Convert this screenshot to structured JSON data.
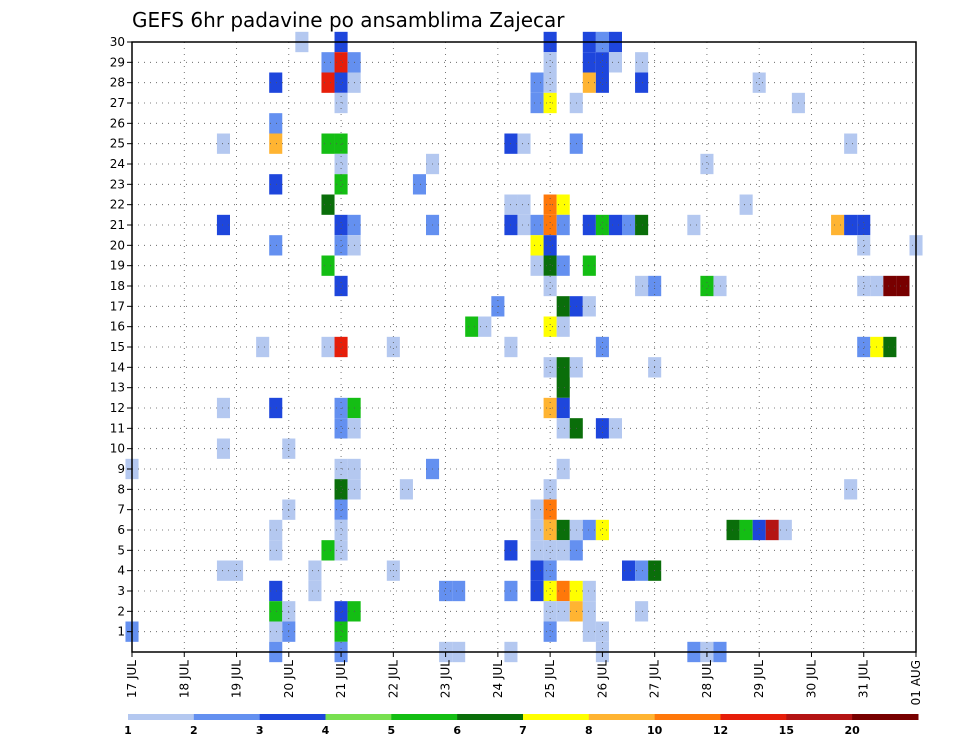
{
  "chart_data": {
    "type": "heatmap",
    "title": "GEFS 6hr padavine po ansamblima Zajecar",
    "xlabel": "",
    "ylabel": "",
    "x_tick_labels": [
      "17 JUL",
      "18 JUL",
      "19 JUL",
      "20 JUL",
      "21 JUL",
      "22 JUL",
      "23 JUL",
      "24 JUL",
      "25 JUL",
      "26 JUL",
      "27 JUL",
      "28 JUL",
      "29 JUL",
      "30 JUL",
      "31 JUL",
      "01 AUG"
    ],
    "y_tick_labels": [
      "1",
      "2",
      "3",
      "4",
      "5",
      "6",
      "7",
      "8",
      "9",
      "10",
      "11",
      "12",
      "13",
      "14",
      "15",
      "16",
      "17",
      "18",
      "19",
      "20",
      "21",
      "22",
      "23",
      "24",
      "25",
      "26",
      "27",
      "28",
      "29",
      "30"
    ],
    "x_range_days": [
      0,
      15
    ],
    "y_range_members": [
      0,
      30
    ],
    "grid": true,
    "legend_placement": "bottom",
    "legend": {
      "labels": [
        "1",
        "2",
        "3",
        "4",
        "5",
        "6",
        "7",
        "8",
        "10",
        "12",
        "15",
        "20"
      ],
      "colors": [
        "#b4c8f0",
        "#6490f0",
        "#1e46dc",
        "#78e050",
        "#14be14",
        "#0a6e0a",
        "#ffff00",
        "#ffb432",
        "#ff780a",
        "#e61e0a",
        "#b41414",
        "#780000"
      ]
    },
    "cells": [
      {
        "x": 3.25,
        "y": 30,
        "c": 0
      },
      {
        "x": 4.0,
        "y": 30,
        "c": 2
      },
      {
        "x": 8.0,
        "y": 30,
        "c": 2
      },
      {
        "x": 8.75,
        "y": 30,
        "c": 2
      },
      {
        "x": 9.0,
        "y": 30,
        "c": 1
      },
      {
        "x": 9.25,
        "y": 30,
        "c": 2
      },
      {
        "x": 3.75,
        "y": 29,
        "c": 1
      },
      {
        "x": 4.0,
        "y": 29,
        "c": 9
      },
      {
        "x": 4.25,
        "y": 29,
        "c": 1
      },
      {
        "x": 8.0,
        "y": 29,
        "c": 0
      },
      {
        "x": 8.75,
        "y": 29,
        "c": 2
      },
      {
        "x": 9.0,
        "y": 29,
        "c": 2
      },
      {
        "x": 9.25,
        "y": 29,
        "c": 0
      },
      {
        "x": 9.75,
        "y": 29,
        "c": 0
      },
      {
        "x": 2.75,
        "y": 28,
        "c": 2
      },
      {
        "x": 3.75,
        "y": 28,
        "c": 9
      },
      {
        "x": 4.0,
        "y": 28,
        "c": 2
      },
      {
        "x": 4.25,
        "y": 28,
        "c": 0
      },
      {
        "x": 7.75,
        "y": 28,
        "c": 1
      },
      {
        "x": 8.0,
        "y": 28,
        "c": 0
      },
      {
        "x": 8.75,
        "y": 28,
        "c": 7
      },
      {
        "x": 9.0,
        "y": 28,
        "c": 2
      },
      {
        "x": 9.75,
        "y": 28,
        "c": 2
      },
      {
        "x": 12.0,
        "y": 28,
        "c": 0
      },
      {
        "x": 4.0,
        "y": 27,
        "c": 0
      },
      {
        "x": 7.75,
        "y": 27,
        "c": 1
      },
      {
        "x": 8.0,
        "y": 27,
        "c": 6
      },
      {
        "x": 8.5,
        "y": 27,
        "c": 0
      },
      {
        "x": 12.75,
        "y": 27,
        "c": 0
      },
      {
        "x": 2.75,
        "y": 26,
        "c": 1
      },
      {
        "x": 1.75,
        "y": 25,
        "c": 0
      },
      {
        "x": 2.75,
        "y": 25,
        "c": 7
      },
      {
        "x": 3.75,
        "y": 25,
        "c": 4
      },
      {
        "x": 4.0,
        "y": 25,
        "c": 4
      },
      {
        "x": 7.25,
        "y": 25,
        "c": 2
      },
      {
        "x": 7.5,
        "y": 25,
        "c": 0
      },
      {
        "x": 8.5,
        "y": 25,
        "c": 1
      },
      {
        "x": 13.75,
        "y": 25,
        "c": 0
      },
      {
        "x": 4.0,
        "y": 24,
        "c": 0
      },
      {
        "x": 5.75,
        "y": 24,
        "c": 0
      },
      {
        "x": 11.0,
        "y": 24,
        "c": 0
      },
      {
        "x": 2.75,
        "y": 23,
        "c": 2
      },
      {
        "x": 4.0,
        "y": 23,
        "c": 4
      },
      {
        "x": 5.5,
        "y": 23,
        "c": 1
      },
      {
        "x": 3.75,
        "y": 22,
        "c": 5
      },
      {
        "x": 7.25,
        "y": 22,
        "c": 0
      },
      {
        "x": 7.5,
        "y": 22,
        "c": 0
      },
      {
        "x": 8.0,
        "y": 22,
        "c": 8
      },
      {
        "x": 8.25,
        "y": 22,
        "c": 6
      },
      {
        "x": 11.75,
        "y": 22,
        "c": 0
      },
      {
        "x": 1.75,
        "y": 21,
        "c": 2
      },
      {
        "x": 4.0,
        "y": 21,
        "c": 2
      },
      {
        "x": 4.25,
        "y": 21,
        "c": 1
      },
      {
        "x": 5.75,
        "y": 21,
        "c": 1
      },
      {
        "x": 7.25,
        "y": 21,
        "c": 2
      },
      {
        "x": 7.5,
        "y": 21,
        "c": 0
      },
      {
        "x": 7.75,
        "y": 21,
        "c": 1
      },
      {
        "x": 8.0,
        "y": 21,
        "c": 8
      },
      {
        "x": 8.25,
        "y": 21,
        "c": 1
      },
      {
        "x": 8.75,
        "y": 21,
        "c": 2
      },
      {
        "x": 9.0,
        "y": 21,
        "c": 4
      },
      {
        "x": 9.25,
        "y": 21,
        "c": 2
      },
      {
        "x": 9.5,
        "y": 21,
        "c": 1
      },
      {
        "x": 9.75,
        "y": 21,
        "c": 5
      },
      {
        "x": 10.75,
        "y": 21,
        "c": 0
      },
      {
        "x": 13.5,
        "y": 21,
        "c": 7
      },
      {
        "x": 13.75,
        "y": 21,
        "c": 2
      },
      {
        "x": 14.0,
        "y": 21,
        "c": 2
      },
      {
        "x": 2.75,
        "y": 20,
        "c": 1
      },
      {
        "x": 4.0,
        "y": 20,
        "c": 1
      },
      {
        "x": 4.25,
        "y": 20,
        "c": 0
      },
      {
        "x": 7.75,
        "y": 20,
        "c": 6
      },
      {
        "x": 8.0,
        "y": 20,
        "c": 2
      },
      {
        "x": 14.0,
        "y": 20,
        "c": 0
      },
      {
        "x": 15.0,
        "y": 20,
        "c": 0
      },
      {
        "x": 3.75,
        "y": 19,
        "c": 4
      },
      {
        "x": 7.75,
        "y": 19,
        "c": 0
      },
      {
        "x": 8.0,
        "y": 19,
        "c": 5
      },
      {
        "x": 8.25,
        "y": 19,
        "c": 1
      },
      {
        "x": 8.75,
        "y": 19,
        "c": 4
      },
      {
        "x": 4.0,
        "y": 18,
        "c": 2
      },
      {
        "x": 8.0,
        "y": 18,
        "c": 0
      },
      {
        "x": 9.75,
        "y": 18,
        "c": 0
      },
      {
        "x": 10.0,
        "y": 18,
        "c": 1
      },
      {
        "x": 11.0,
        "y": 18,
        "c": 4
      },
      {
        "x": 11.25,
        "y": 18,
        "c": 0
      },
      {
        "x": 14.0,
        "y": 18,
        "c": 0
      },
      {
        "x": 14.25,
        "y": 18,
        "c": 0
      },
      {
        "x": 14.5,
        "y": 18,
        "c": 11
      },
      {
        "x": 14.75,
        "y": 18,
        "c": 11
      },
      {
        "x": 7.0,
        "y": 17,
        "c": 1
      },
      {
        "x": 8.25,
        "y": 17,
        "c": 5
      },
      {
        "x": 8.5,
        "y": 17,
        "c": 2
      },
      {
        "x": 8.75,
        "y": 17,
        "c": 0
      },
      {
        "x": 6.5,
        "y": 16,
        "c": 4
      },
      {
        "x": 6.75,
        "y": 16,
        "c": 0
      },
      {
        "x": 8.0,
        "y": 16,
        "c": 6
      },
      {
        "x": 8.25,
        "y": 16,
        "c": 0
      },
      {
        "x": 2.5,
        "y": 15,
        "c": 0
      },
      {
        "x": 3.75,
        "y": 15,
        "c": 0
      },
      {
        "x": 4.0,
        "y": 15,
        "c": 9
      },
      {
        "x": 5.0,
        "y": 15,
        "c": 0
      },
      {
        "x": 7.25,
        "y": 15,
        "c": 0
      },
      {
        "x": 9.0,
        "y": 15,
        "c": 1
      },
      {
        "x": 14.0,
        "y": 15,
        "c": 1
      },
      {
        "x": 14.25,
        "y": 15,
        "c": 6
      },
      {
        "x": 14.5,
        "y": 15,
        "c": 5
      },
      {
        "x": 8.0,
        "y": 14,
        "c": 0
      },
      {
        "x": 8.25,
        "y": 14,
        "c": 5
      },
      {
        "x": 8.5,
        "y": 14,
        "c": 0
      },
      {
        "x": 10.0,
        "y": 14,
        "c": 0
      },
      {
        "x": 8.25,
        "y": 13,
        "c": 5
      },
      {
        "x": 1.75,
        "y": 12,
        "c": 0
      },
      {
        "x": 2.75,
        "y": 12,
        "c": 2
      },
      {
        "x": 4.0,
        "y": 12,
        "c": 1
      },
      {
        "x": 4.25,
        "y": 12,
        "c": 4
      },
      {
        "x": 8.0,
        "y": 12,
        "c": 7
      },
      {
        "x": 8.25,
        "y": 12,
        "c": 2
      },
      {
        "x": 4.0,
        "y": 11,
        "c": 1
      },
      {
        "x": 4.25,
        "y": 11,
        "c": 0
      },
      {
        "x": 8.25,
        "y": 11,
        "c": 0
      },
      {
        "x": 8.5,
        "y": 11,
        "c": 5
      },
      {
        "x": 9.0,
        "y": 11,
        "c": 2
      },
      {
        "x": 9.25,
        "y": 11,
        "c": 0
      },
      {
        "x": 1.75,
        "y": 10,
        "c": 0
      },
      {
        "x": 3.0,
        "y": 10,
        "c": 0
      },
      {
        "x": 0.0,
        "y": 9,
        "c": 0
      },
      {
        "x": 4.0,
        "y": 9,
        "c": 0
      },
      {
        "x": 4.25,
        "y": 9,
        "c": 0
      },
      {
        "x": 5.75,
        "y": 9,
        "c": 1
      },
      {
        "x": 8.25,
        "y": 9,
        "c": 0
      },
      {
        "x": 4.0,
        "y": 8,
        "c": 5
      },
      {
        "x": 4.25,
        "y": 8,
        "c": 0
      },
      {
        "x": 5.25,
        "y": 8,
        "c": 0
      },
      {
        "x": 8.0,
        "y": 8,
        "c": 0
      },
      {
        "x": 13.75,
        "y": 8,
        "c": 0
      },
      {
        "x": 3.0,
        "y": 7,
        "c": 0
      },
      {
        "x": 4.0,
        "y": 7,
        "c": 1
      },
      {
        "x": 7.75,
        "y": 7,
        "c": 0
      },
      {
        "x": 8.0,
        "y": 7,
        "c": 8
      },
      {
        "x": 2.75,
        "y": 6,
        "c": 0
      },
      {
        "x": 4.0,
        "y": 6,
        "c": 0
      },
      {
        "x": 7.75,
        "y": 6,
        "c": 0
      },
      {
        "x": 8.0,
        "y": 6,
        "c": 7
      },
      {
        "x": 8.25,
        "y": 6,
        "c": 5
      },
      {
        "x": 8.5,
        "y": 6,
        "c": 0
      },
      {
        "x": 8.75,
        "y": 6,
        "c": 1
      },
      {
        "x": 9.0,
        "y": 6,
        "c": 6
      },
      {
        "x": 11.5,
        "y": 6,
        "c": 5
      },
      {
        "x": 11.75,
        "y": 6,
        "c": 4
      },
      {
        "x": 12.0,
        "y": 6,
        "c": 2
      },
      {
        "x": 12.25,
        "y": 6,
        "c": 10
      },
      {
        "x": 12.5,
        "y": 6,
        "c": 0
      },
      {
        "x": 2.75,
        "y": 5,
        "c": 0
      },
      {
        "x": 3.75,
        "y": 5,
        "c": 4
      },
      {
        "x": 4.0,
        "y": 5,
        "c": 0
      },
      {
        "x": 7.25,
        "y": 5,
        "c": 2
      },
      {
        "x": 7.75,
        "y": 5,
        "c": 0
      },
      {
        "x": 8.0,
        "y": 5,
        "c": 0
      },
      {
        "x": 8.25,
        "y": 5,
        "c": 0
      },
      {
        "x": 8.5,
        "y": 5,
        "c": 1
      },
      {
        "x": 1.75,
        "y": 4,
        "c": 0
      },
      {
        "x": 2.0,
        "y": 4,
        "c": 0
      },
      {
        "x": 3.5,
        "y": 4,
        "c": 0
      },
      {
        "x": 5.0,
        "y": 4,
        "c": 0
      },
      {
        "x": 7.75,
        "y": 4,
        "c": 2
      },
      {
        "x": 8.0,
        "y": 4,
        "c": 1
      },
      {
        "x": 9.5,
        "y": 4,
        "c": 2
      },
      {
        "x": 9.75,
        "y": 4,
        "c": 1
      },
      {
        "x": 10.0,
        "y": 4,
        "c": 5
      },
      {
        "x": 2.75,
        "y": 3,
        "c": 2
      },
      {
        "x": 3.5,
        "y": 3,
        "c": 0
      },
      {
        "x": 6.0,
        "y": 3,
        "c": 1
      },
      {
        "x": 6.25,
        "y": 3,
        "c": 1
      },
      {
        "x": 7.25,
        "y": 3,
        "c": 1
      },
      {
        "x": 7.75,
        "y": 3,
        "c": 2
      },
      {
        "x": 8.0,
        "y": 3,
        "c": 6
      },
      {
        "x": 8.25,
        "y": 3,
        "c": 8
      },
      {
        "x": 8.5,
        "y": 3,
        "c": 6
      },
      {
        "x": 8.75,
        "y": 3,
        "c": 0
      },
      {
        "x": 2.75,
        "y": 2,
        "c": 4
      },
      {
        "x": 3.0,
        "y": 2,
        "c": 0
      },
      {
        "x": 4.0,
        "y": 2,
        "c": 2
      },
      {
        "x": 4.25,
        "y": 2,
        "c": 4
      },
      {
        "x": 8.0,
        "y": 2,
        "c": 0
      },
      {
        "x": 8.25,
        "y": 2,
        "c": 0
      },
      {
        "x": 8.5,
        "y": 2,
        "c": 7
      },
      {
        "x": 8.75,
        "y": 2,
        "c": 0
      },
      {
        "x": 9.75,
        "y": 2,
        "c": 0
      },
      {
        "x": 0.0,
        "y": 1,
        "c": 1
      },
      {
        "x": 2.75,
        "y": 1,
        "c": 0
      },
      {
        "x": 3.0,
        "y": 1,
        "c": 1
      },
      {
        "x": 4.0,
        "y": 1,
        "c": 4
      },
      {
        "x": 8.0,
        "y": 1,
        "c": 1
      },
      {
        "x": 8.75,
        "y": 1,
        "c": 0
      },
      {
        "x": 9.0,
        "y": 1,
        "c": 0
      },
      {
        "x": 2.75,
        "y": 0,
        "c": 1
      },
      {
        "x": 4.0,
        "y": 0,
        "c": 1
      },
      {
        "x": 6.0,
        "y": 0,
        "c": 0
      },
      {
        "x": 6.25,
        "y": 0,
        "c": 0
      },
      {
        "x": 7.25,
        "y": 0,
        "c": 0
      },
      {
        "x": 9.0,
        "y": 0,
        "c": 0
      },
      {
        "x": 10.75,
        "y": 0,
        "c": 1
      },
      {
        "x": 11.0,
        "y": 0,
        "c": 0
      },
      {
        "x": 11.25,
        "y": 0,
        "c": 1
      }
    ]
  }
}
